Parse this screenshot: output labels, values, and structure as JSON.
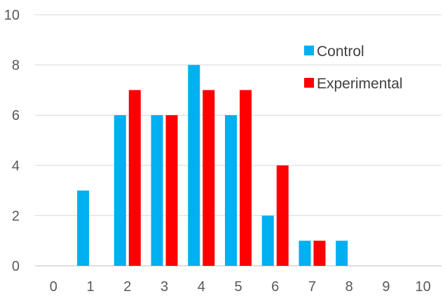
{
  "chart_data": {
    "type": "bar",
    "categories": [
      "0",
      "1",
      "2",
      "3",
      "4",
      "5",
      "6",
      "7",
      "8",
      "9",
      "10"
    ],
    "series": [
      {
        "name": "Control",
        "color": "#00B0F0",
        "values": [
          0,
          3,
          6,
          6,
          8,
          6,
          2,
          1,
          1,
          0,
          0
        ]
      },
      {
        "name": "Experimental",
        "color": "#FF0000",
        "values": [
          0,
          0,
          7,
          6,
          7,
          7,
          4,
          1,
          0,
          0,
          0
        ]
      }
    ],
    "ylim": [
      0,
      10
    ],
    "yticks": [
      0,
      2,
      4,
      6,
      8,
      10
    ],
    "grid": true,
    "legend": "top-right",
    "title": "",
    "xlabel": "",
    "ylabel": ""
  }
}
